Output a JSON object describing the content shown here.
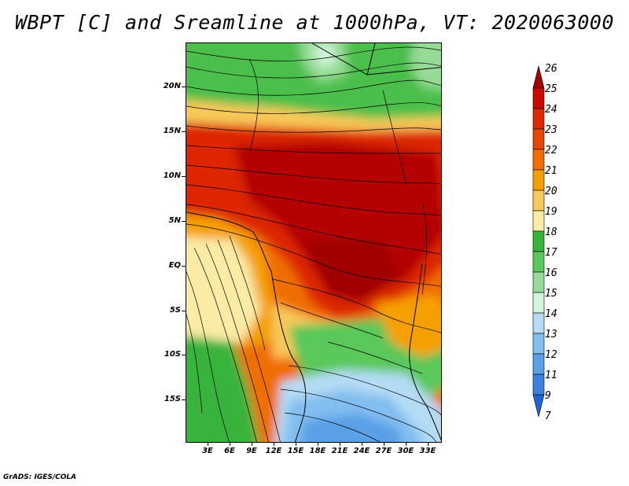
{
  "title": "WBPT [C] and Sreamline at 1000hPa, VT: 2020063000",
  "footer": "GrADS: IGES/COLA",
  "lat_labels": [
    "20N",
    "15N",
    "10N",
    "5N",
    "EQ",
    "5S",
    "10S",
    "15S"
  ],
  "lon_labels": [
    "3E",
    "6E",
    "9E",
    "12E",
    "15E",
    "18E",
    "21E",
    "24E",
    "27E",
    "30E",
    "33E"
  ],
  "colorbar": {
    "levels": [
      "26",
      "25",
      "24",
      "23",
      "22",
      "21",
      "20",
      "19",
      "18",
      "17",
      "16",
      "15",
      "14",
      "13",
      "12",
      "11",
      "9",
      "7"
    ],
    "colors": [
      "#a50000",
      "#c80a00",
      "#dc2800",
      "#e64600",
      "#f06e00",
      "#f5a000",
      "#f8c85a",
      "#faeba5",
      "#37b43c",
      "#5ac85a",
      "#96dc96",
      "#d2f5dc",
      "#b4dcf5",
      "#82bef0",
      "#5aa0e6",
      "#3c82dc",
      "#1e64d2"
    ]
  }
}
